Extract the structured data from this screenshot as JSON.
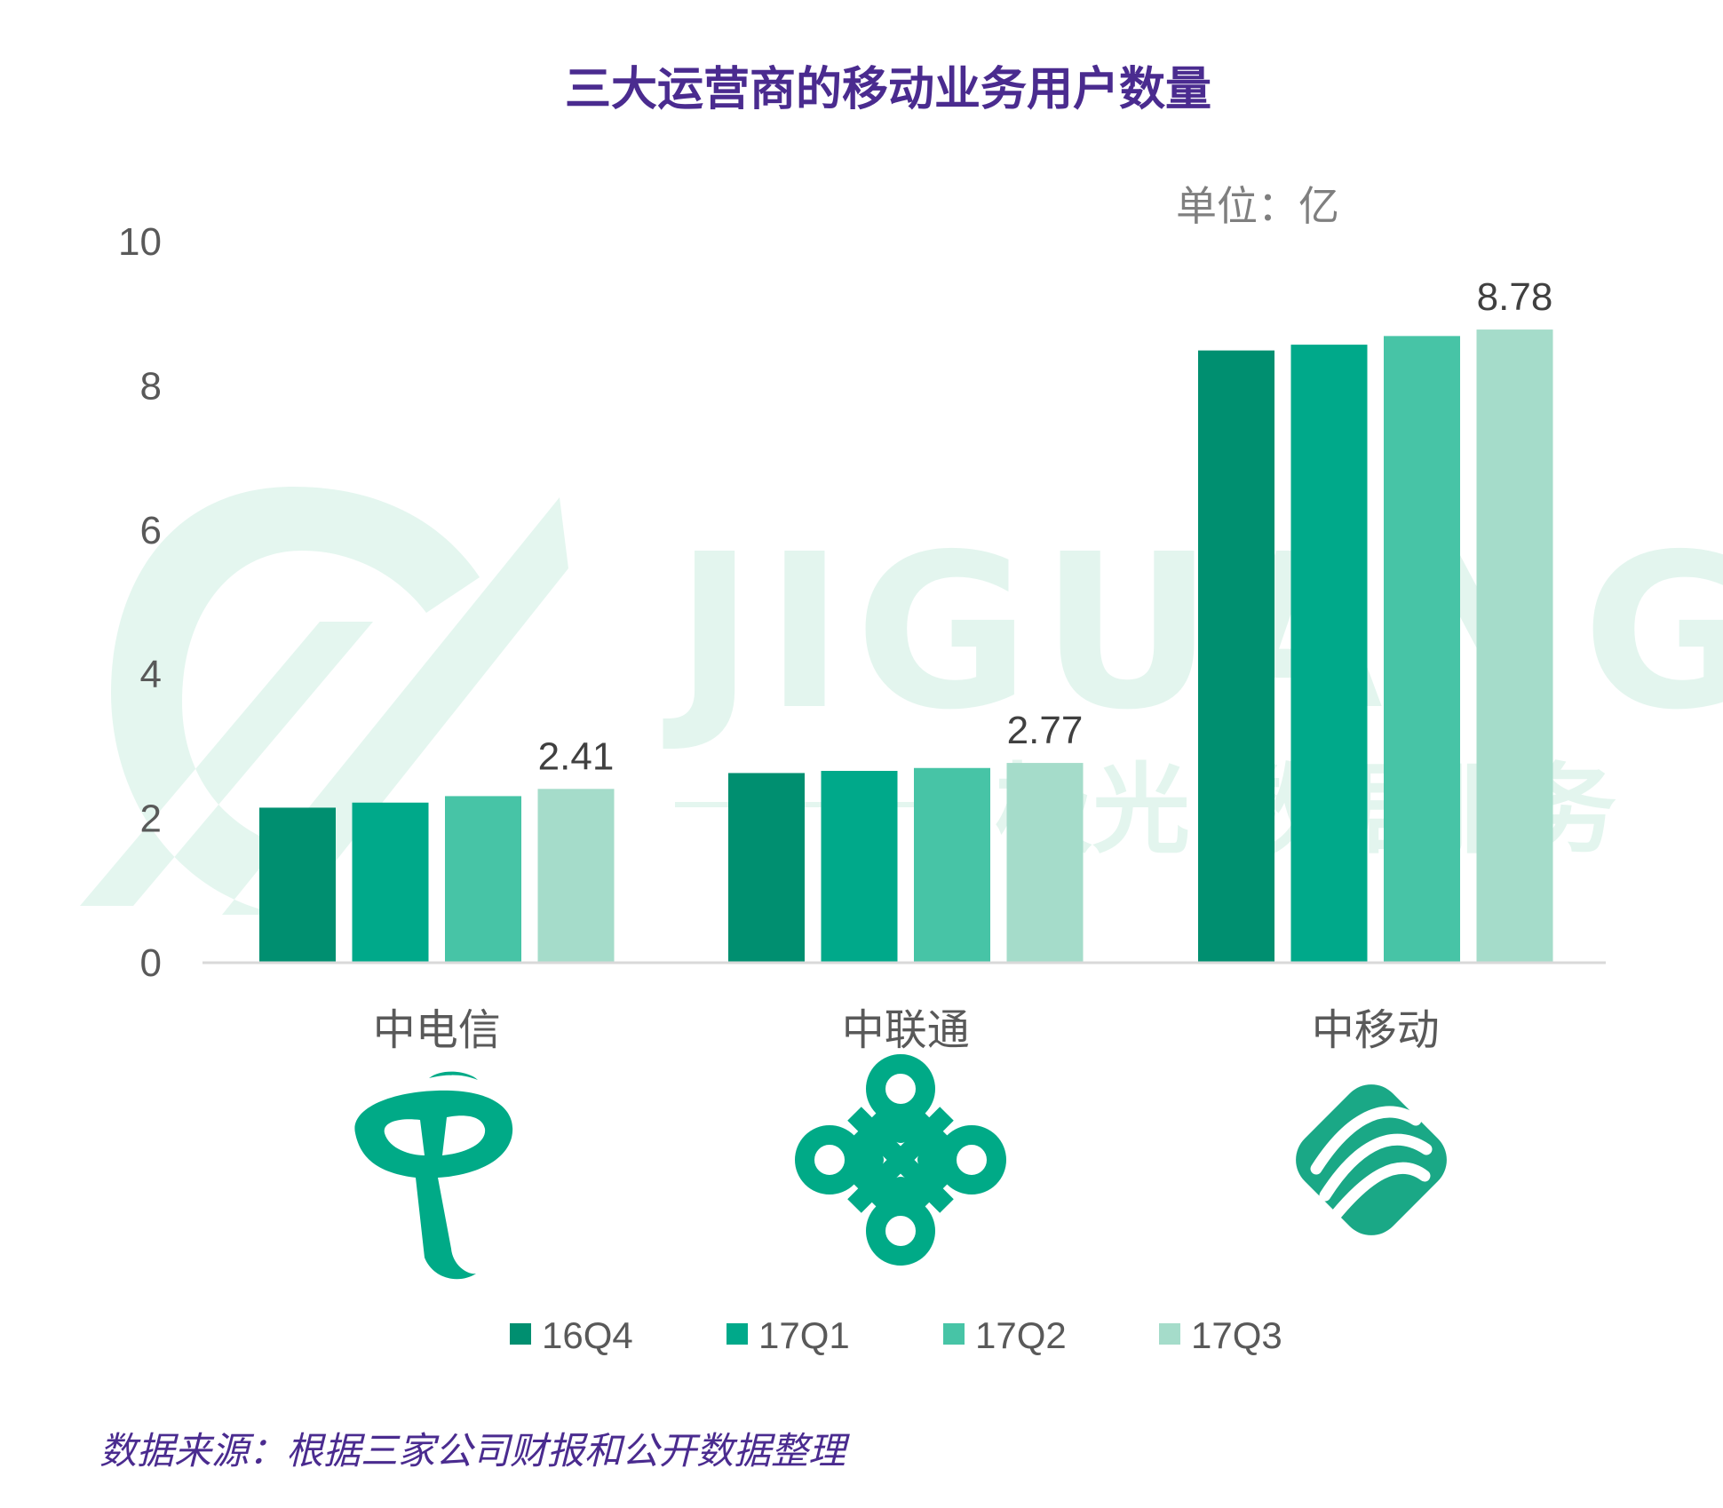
{
  "chart_data": {
    "type": "bar",
    "title": "三大运营商的移动业务用户数量",
    "unit_label": "单位：亿",
    "categories": [
      "中电信",
      "中联通",
      "中移动"
    ],
    "series": [
      {
        "name": "16Q4",
        "values": [
          2.15,
          2.63,
          8.49
        ]
      },
      {
        "name": "17Q1",
        "values": [
          2.22,
          2.66,
          8.57
        ]
      },
      {
        "name": "17Q2",
        "values": [
          2.31,
          2.7,
          8.69
        ]
      },
      {
        "name": "17Q3",
        "values": [
          2.41,
          2.77,
          8.78
        ]
      }
    ],
    "data_labels": [
      {
        "category": "中电信",
        "series": "17Q3",
        "text": "2.41"
      },
      {
        "category": "中联通",
        "series": "17Q3",
        "text": "2.77"
      },
      {
        "category": "中移动",
        "series": "17Q3",
        "text": "8.78"
      }
    ],
    "ylim": [
      0,
      10
    ],
    "yticks": [
      "0",
      "2",
      "4",
      "6",
      "8",
      "10"
    ],
    "grid": false,
    "legend_position": "bottom",
    "colors": [
      "#008f70",
      "#00a98a",
      "#47c4a6",
      "#a5dcca"
    ],
    "source": "数据来源：根据三家公司财报和公开数据整理"
  },
  "watermark": {
    "text_en": "JIGUANG",
    "text_cn_a": "极光",
    "text_cn_b": "数据服务"
  },
  "logos": [
    "china-telecom-logo",
    "china-unicom-logo",
    "china-mobile-logo"
  ]
}
